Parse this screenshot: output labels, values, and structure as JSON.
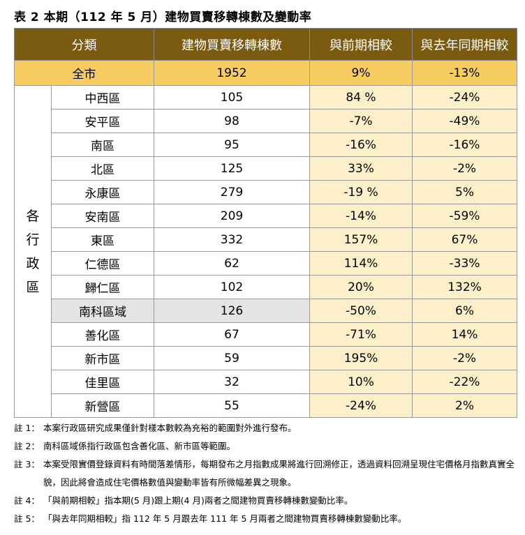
{
  "title": "表 2 本期（112 年 5 月）建物買賣移轉棟數及變動率",
  "headers": [
    "分類",
    "建物買賣移轉棟數",
    "與前期相較",
    "與去年同期相較"
  ],
  "total": {
    "name": "全市",
    "count": "1952",
    "prev": "9%",
    "yoy": "-13%"
  },
  "group_label": [
    "各",
    "行",
    "政",
    "區"
  ],
  "rows": [
    {
      "name": "中西區",
      "count": "105",
      "prev": "84 %",
      "yoy": "-24%"
    },
    {
      "name": "安平區",
      "count": "98",
      "prev": "-7%",
      "yoy": "-49%"
    },
    {
      "name": "南區",
      "count": "95",
      "prev": "-16%",
      "yoy": "-16%"
    },
    {
      "name": "北區",
      "count": "125",
      "prev": "33%",
      "yoy": "-2%"
    },
    {
      "name": "永康區",
      "count": "279",
      "prev": "-19 %",
      "yoy": "5%"
    },
    {
      "name": "安南區",
      "count": "209",
      "prev": "-14%",
      "yoy": "-59%"
    },
    {
      "name": "東區",
      "count": "332",
      "prev": "157%",
      "yoy": "67%"
    },
    {
      "name": "仁德區",
      "count": "62",
      "prev": "114%",
      "yoy": "-33%"
    },
    {
      "name": "歸仁區",
      "count": "102",
      "prev": "20%",
      "yoy": "132%"
    },
    {
      "name": "南科區域",
      "count": "126",
      "prev": "-50%",
      "yoy": "6%"
    },
    {
      "name": "善化區",
      "count": "67",
      "prev": "-71%",
      "yoy": "14%"
    },
    {
      "name": "新市區",
      "count": "59",
      "prev": "195%",
      "yoy": "-2%"
    },
    {
      "name": "佳里區",
      "count": "32",
      "prev": "10%",
      "yoy": "-22%"
    },
    {
      "name": "新營區",
      "count": "55",
      "prev": "-24%",
      "yoy": "2%"
    }
  ],
  "notes": [
    {
      "label": "註 1：",
      "text": "本案行政區研究成果僅針對樣本數較為充裕的範圍對外進行發布。"
    },
    {
      "label": "註 2：",
      "text": "南科區域係指行政區包含善化區、新市區等範圍。"
    },
    {
      "label": "註 3：",
      "text": "本案受限實價登錄資料有時間落差情形，每期發布之月指數成果將進行回溯修正，透過資料回溯呈現住宅價格月指數真實全貌，因此將會造成住宅價格數值與變動率皆有所微幅差異之現象。"
    },
    {
      "label": "註 4：",
      "text": "「與前期相較」指本期(5 月)跟上期(4 月)兩者之間建物買賣移轉棟數變動比率。"
    },
    {
      "label": "註 5：",
      "text": "「與去年同期相較」指 112 年 5 月跟去年 111 年 5 月兩者之間建物買賣移轉棟數變動比率。"
    }
  ]
}
